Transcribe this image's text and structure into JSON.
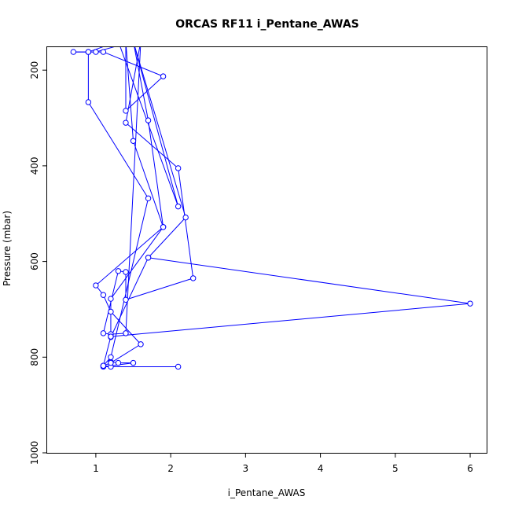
{
  "chart_data": {
    "type": "line",
    "title": "ORCAS RF11 i_Pentane_AWAS",
    "xlabel": "i_Pentane_AWAS",
    "ylabel": "Pressure (mbar)",
    "xlim": [
      0.35,
      6.22
    ],
    "ylim": [
      1000,
      152
    ],
    "y_reversed": true,
    "x_ticks": [
      1,
      2,
      3,
      4,
      5,
      6
    ],
    "y_ticks": [
      200,
      400,
      600,
      800,
      1000
    ],
    "grid": false,
    "colors": {
      "series": "#0000ff",
      "axes": "#000000"
    },
    "series": [
      {
        "marker": "open-circle",
        "points": [
          [
            1.2,
            810
          ],
          [
            1.3,
            812
          ],
          [
            1.5,
            812
          ],
          [
            1.1,
            820
          ],
          [
            2.1,
            820
          ],
          [
            1.2,
            820
          ],
          [
            1.1,
            818
          ],
          [
            1.2,
            812
          ],
          [
            1.6,
            773
          ],
          [
            1.2,
            705
          ],
          [
            1.1,
            670
          ],
          [
            1.0,
            650
          ],
          [
            1.9,
            528
          ],
          [
            1.5,
            348
          ],
          [
            1.4,
            140
          ],
          [
            1.4,
            285
          ],
          [
            1.9,
            213
          ],
          [
            1.1,
            162
          ],
          [
            0.9,
            162
          ],
          [
            0.7,
            162
          ],
          [
            0.9,
            162
          ],
          [
            1.0,
            162
          ],
          [
            1.5,
            140
          ],
          [
            1.7,
            305
          ],
          [
            1.9,
            528
          ],
          [
            1.2,
            678
          ],
          [
            1.2,
            752
          ],
          [
            1.4,
            750
          ],
          [
            1.6,
            140
          ],
          [
            1.4,
            310
          ],
          [
            2.1,
            405
          ],
          [
            2.3,
            635
          ],
          [
            1.4,
            680
          ],
          [
            1.4,
            622
          ],
          [
            1.3,
            620
          ],
          [
            1.1,
            750
          ],
          [
            1.2,
            752
          ],
          [
            1.2,
            758
          ],
          [
            1.7,
            592
          ],
          [
            2.2,
            508
          ],
          [
            1.5,
            140
          ],
          [
            2.1,
            485
          ],
          [
            1.3,
            140
          ],
          [
            0.9,
            162
          ],
          [
            0.9,
            267
          ],
          [
            1.7,
            468
          ],
          [
            1.2,
            800
          ],
          [
            1.1,
            818
          ],
          [
            1.2,
            757
          ],
          [
            6.0,
            688
          ],
          [
            1.7,
            592
          ]
        ]
      }
    ]
  }
}
